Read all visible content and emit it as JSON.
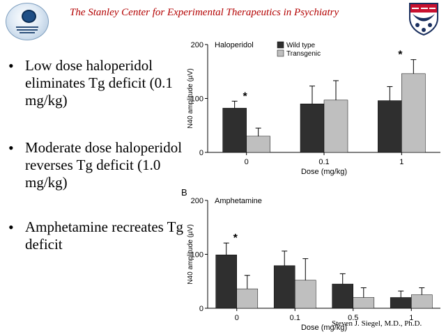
{
  "header": {
    "title": "The Stanley Center for Experimental Therapeutics in Psychiatry"
  },
  "logos": {
    "left": "stanley-center-seal",
    "right": "penn-shield"
  },
  "bullets": [
    "Low dose haloperidol eliminates Tg deficit (0.1 mg/kg)",
    "Moderate dose haloperidol reverses Tg deficit (1.0 mg/kg)",
    "Amphetamine recreates Tg deficit"
  ],
  "panel_label_b": "B",
  "footer": {
    "author": "Steven J. Siegel, M.D., Ph.D."
  },
  "colors": {
    "header_text": "#b30000",
    "wild_type": "#2f2f2f",
    "transgenic": "#bfbfbf"
  },
  "chart_data": [
    {
      "type": "bar",
      "title": "Haloperidol",
      "xlabel": "Dose (mg/kg)",
      "ylabel": "N40 amplitude (µV)",
      "ylim": [
        0,
        200
      ],
      "yticks": [
        0,
        100,
        200
      ],
      "categories": [
        "0",
        "0.1",
        "1"
      ],
      "legend_position": "top-left",
      "series": [
        {
          "name": "Wild type",
          "values": [
            82,
            90,
            96
          ],
          "errors": [
            13,
            33,
            26
          ]
        },
        {
          "name": "Transgenic",
          "values": [
            30,
            97,
            146
          ],
          "errors": [
            15,
            36,
            26
          ]
        }
      ],
      "annotations": [
        {
          "text": "*",
          "category": "0"
        },
        {
          "text": "*",
          "category": "1"
        }
      ]
    },
    {
      "type": "bar",
      "title": "Amphetamine",
      "xlabel": "Dose (mg/kg)",
      "ylabel": "N40 amplitude (µV)",
      "ylim": [
        0,
        200
      ],
      "yticks": [
        0,
        100,
        200
      ],
      "categories": [
        "0",
        "0.1",
        "0.5",
        "1"
      ],
      "series": [
        {
          "name": "Wild type",
          "values": [
            99,
            79,
            45,
            20
          ],
          "errors": [
            22,
            27,
            19,
            12
          ]
        },
        {
          "name": "Transgenic",
          "values": [
            36,
            52,
            20,
            25
          ],
          "errors": [
            25,
            40,
            18,
            13
          ]
        }
      ],
      "annotations": [
        {
          "text": "*",
          "category": "0"
        }
      ]
    }
  ]
}
